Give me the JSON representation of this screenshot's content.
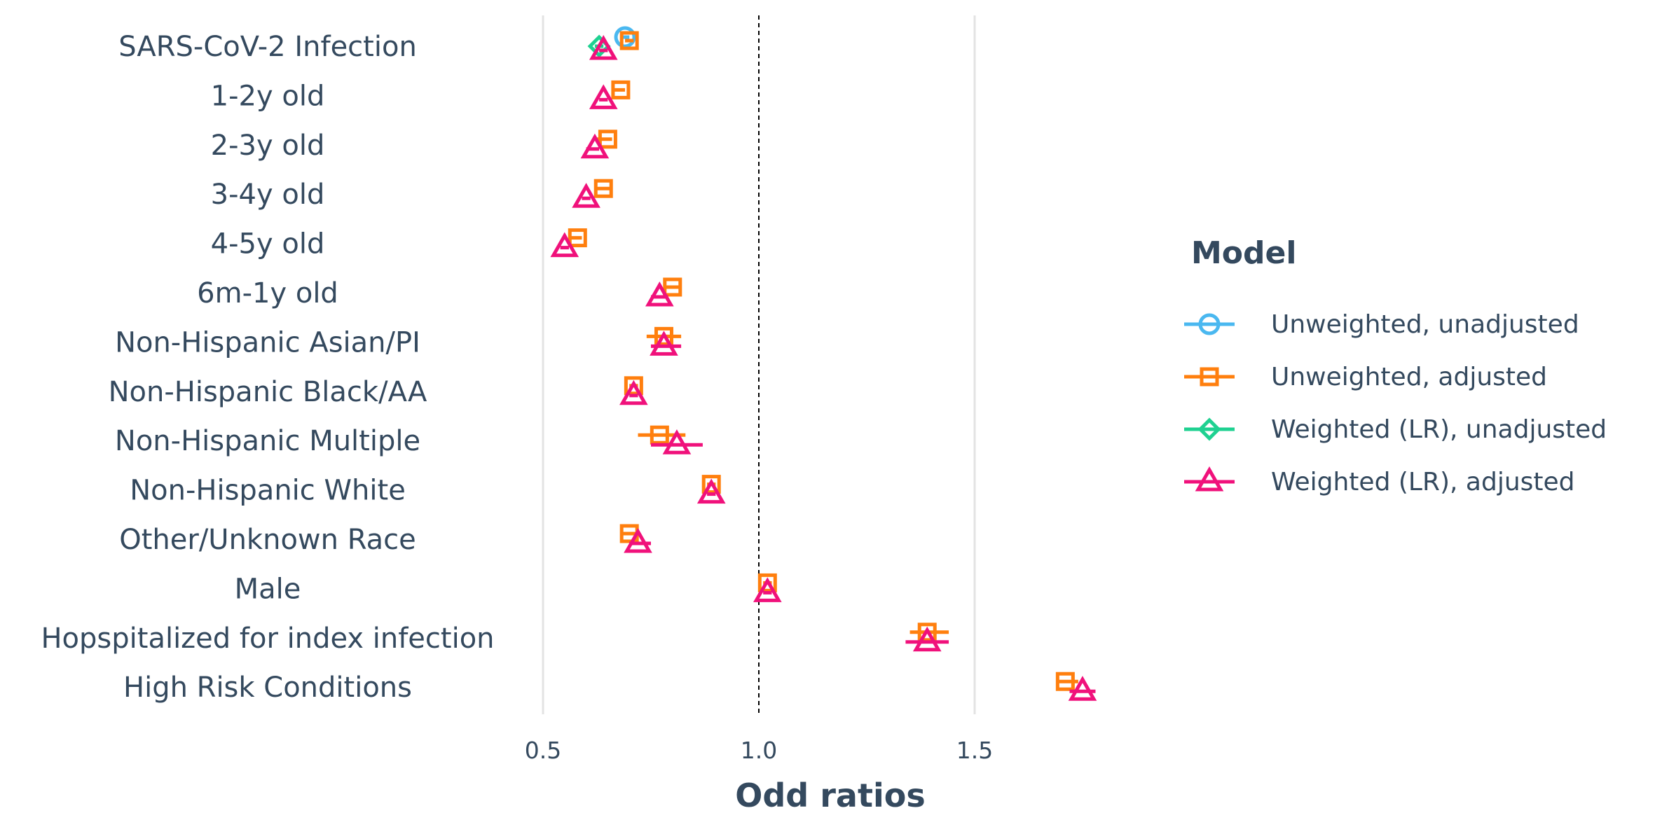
{
  "chart_data": {
    "type": "scatter",
    "subtype": "forest-plot",
    "xlabel": "Odd ratios",
    "xlim": [
      0.5,
      1.5
    ],
    "xticks": [
      0.5,
      1.0,
      1.5
    ],
    "xtick_labels": [
      "0.5",
      "1.0",
      "1.5"
    ],
    "reference_line": 1.0,
    "grid": "vertical lines at 0.5 and 1.5",
    "legend_title": "Model",
    "legend_position": "right",
    "categories": [
      "SARS-CoV-2 Infection",
      "1-2y old",
      "2-3y old",
      "3-4y old",
      "4-5y old",
      "6m-1y old",
      "Non-Hispanic Asian/PI",
      "Non-Hispanic Black/AA",
      "Non-Hispanic Multiple",
      "Non-Hispanic White",
      "Other/Unknown Race",
      "Male",
      "Hopspitalized for index infection",
      "High Risk Conditions"
    ],
    "series": [
      {
        "name": "Unweighted, unadjusted",
        "color": "#4ab8f0",
        "marker": "circle",
        "values": [
          0.69,
          null,
          null,
          null,
          null,
          null,
          null,
          null,
          null,
          null,
          null,
          null,
          null,
          null
        ],
        "ci_low": [
          0.68,
          null,
          null,
          null,
          null,
          null,
          null,
          null,
          null,
          null,
          null,
          null,
          null,
          null
        ],
        "ci_high": [
          0.7,
          null,
          null,
          null,
          null,
          null,
          null,
          null,
          null,
          null,
          null,
          null,
          null,
          null
        ]
      },
      {
        "name": "Unweighted, adjusted",
        "color": "#ff7f0e",
        "marker": "square",
        "values": [
          0.7,
          0.68,
          0.65,
          0.64,
          0.58,
          0.8,
          0.78,
          0.71,
          0.77,
          0.89,
          0.7,
          1.02,
          1.39,
          1.71
        ],
        "ci_low": [
          0.69,
          0.66,
          0.62,
          0.62,
          0.56,
          0.78,
          0.74,
          0.7,
          0.72,
          0.88,
          0.68,
          1.01,
          1.35,
          1.69
        ],
        "ci_high": [
          0.71,
          0.69,
          0.66,
          0.66,
          0.59,
          0.82,
          0.82,
          0.72,
          0.83,
          0.9,
          0.72,
          1.03,
          1.44,
          1.74
        ]
      },
      {
        "name": "Weighted (LR), unadjusted",
        "color": "#1fd191",
        "marker": "diamond",
        "values": [
          0.63,
          null,
          null,
          null,
          null,
          null,
          null,
          null,
          null,
          null,
          null,
          null,
          null,
          null
        ],
        "ci_low": [
          0.62,
          null,
          null,
          null,
          null,
          null,
          null,
          null,
          null,
          null,
          null,
          null,
          null,
          null
        ],
        "ci_high": [
          0.64,
          null,
          null,
          null,
          null,
          null,
          null,
          null,
          null,
          null,
          null,
          null,
          null,
          null
        ]
      },
      {
        "name": "Weighted (LR), adjusted",
        "color": "#f0117b",
        "marker": "triangle",
        "values": [
          0.64,
          0.64,
          0.62,
          0.6,
          0.55,
          0.77,
          0.78,
          0.71,
          0.81,
          0.89,
          0.72,
          1.02,
          1.39,
          1.75
        ],
        "ci_low": [
          0.63,
          0.63,
          0.6,
          0.59,
          0.54,
          0.75,
          0.75,
          0.7,
          0.75,
          0.88,
          0.7,
          1.01,
          1.34,
          1.72
        ],
        "ci_high": [
          0.65,
          0.65,
          0.63,
          0.61,
          0.56,
          0.79,
          0.82,
          0.72,
          0.87,
          0.9,
          0.75,
          1.03,
          1.44,
          1.78
        ]
      }
    ]
  }
}
